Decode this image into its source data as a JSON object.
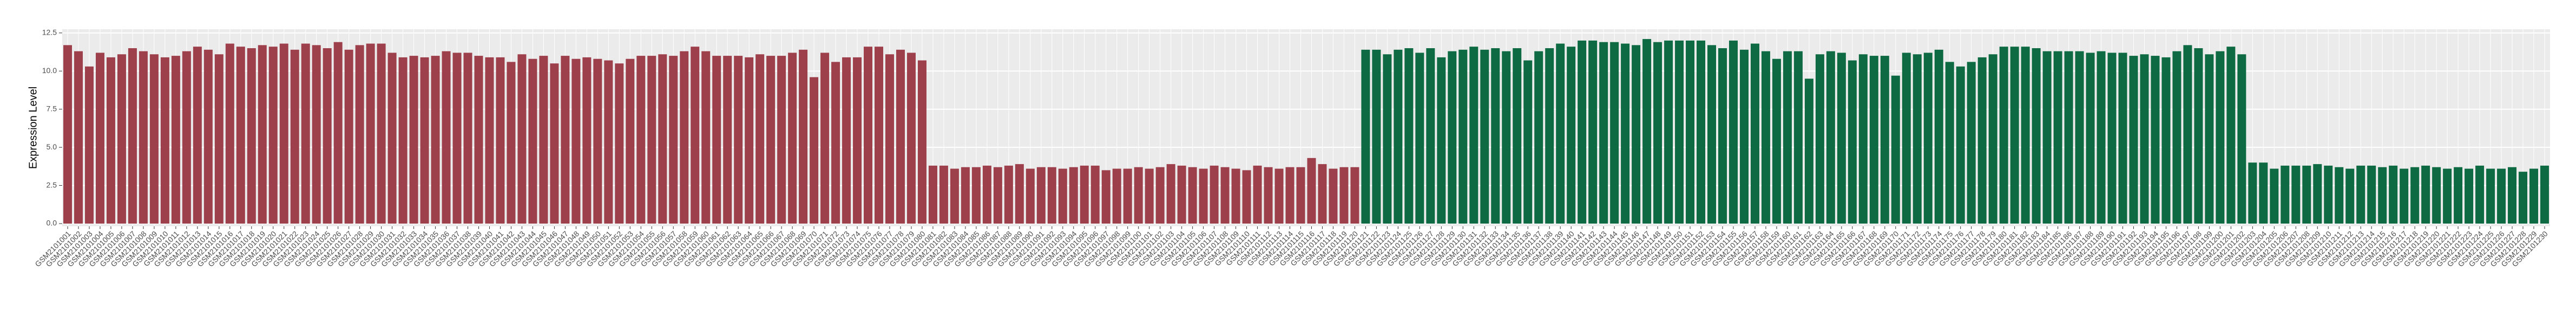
{
  "chart_data": {
    "type": "bar",
    "ylabel": "Expression Level",
    "categories": [
      "GSM2101001",
      "GSM2101002",
      "GSM2101003",
      "GSM2101004",
      "GSM2101005",
      "GSM2101006",
      "GSM2101007",
      "GSM2101008",
      "GSM2101009",
      "GSM2101010",
      "GSM2101011",
      "GSM2101012",
      "GSM2101013",
      "GSM2101014",
      "GSM2101015",
      "GSM2101016",
      "GSM2101017",
      "GSM2101018",
      "GSM2101019",
      "GSM2101020",
      "GSM2101021",
      "GSM2101022",
      "GSM2101023",
      "GSM2101024",
      "GSM2101025",
      "GSM2101026",
      "GSM2101027",
      "GSM2101028",
      "GSM2101029",
      "GSM2101030",
      "GSM2101031",
      "GSM2101032",
      "GSM2101033",
      "GSM2101034",
      "GSM2101035",
      "GSM2101036",
      "GSM2101037",
      "GSM2101038",
      "GSM2101039",
      "GSM2101040",
      "GSM2101041",
      "GSM2101042",
      "GSM2101043",
      "GSM2101044",
      "GSM2101045",
      "GSM2101046",
      "GSM2101047",
      "GSM2101048",
      "GSM2101049",
      "GSM2101050",
      "GSM2101051",
      "GSM2101052",
      "GSM2101053",
      "GSM2101054",
      "GSM2101055",
      "GSM2101056",
      "GSM2101057",
      "GSM2101058",
      "GSM2101059",
      "GSM2101060",
      "GSM2101061",
      "GSM2101062",
      "GSM2101063",
      "GSM2101064",
      "GSM2101065",
      "GSM2101066",
      "GSM2101067",
      "GSM2101068",
      "GSM2101069",
      "GSM2101070",
      "GSM2101071",
      "GSM2101072",
      "GSM2101073",
      "GSM2101074",
      "GSM2101075",
      "GSM2101076",
      "GSM2101077",
      "GSM2101078",
      "GSM2101079",
      "GSM2101080",
      "GSM2101081",
      "GSM2101082",
      "GSM2101083",
      "GSM2101084",
      "GSM2101085",
      "GSM2101086",
      "GSM2101087",
      "GSM2101088",
      "GSM2101089",
      "GSM2101090",
      "GSM2101091",
      "GSM2101092",
      "GSM2101093",
      "GSM2101094",
      "GSM2101095",
      "GSM2101096",
      "GSM2101097",
      "GSM2101098",
      "GSM2101099",
      "GSM2101100",
      "GSM2101101",
      "GSM2101102",
      "GSM2101103",
      "GSM2101104",
      "GSM2101105",
      "GSM2101106",
      "GSM2101107",
      "GSM2101108",
      "GSM2101109",
      "GSM2101110",
      "GSM2101111",
      "GSM2101112",
      "GSM2101113",
      "GSM2101114",
      "GSM2101115",
      "GSM2101116",
      "GSM2101117",
      "GSM2101118",
      "GSM2101119",
      "GSM2101120",
      "GSM2101121",
      "GSM2101122",
      "GSM2101123",
      "GSM2101124",
      "GSM2101125",
      "GSM2101126",
      "GSM2101127",
      "GSM2101128",
      "GSM2101129",
      "GSM2101130",
      "GSM2101131",
      "GSM2101132",
      "GSM2101133",
      "GSM2101134",
      "GSM2101135",
      "GSM2101136",
      "GSM2101137",
      "GSM2101138",
      "GSM2101139",
      "GSM2101140",
      "GSM2101141",
      "GSM2101142",
      "GSM2101143",
      "GSM2101144",
      "GSM2101145",
      "GSM2101146",
      "GSM2101147",
      "GSM2101148",
      "GSM2101149",
      "GSM2101150",
      "GSM2101151",
      "GSM2101152",
      "GSM2101153",
      "GSM2101154",
      "GSM2101155",
      "GSM2101156",
      "GSM2101157",
      "GSM2101158",
      "GSM2101159",
      "GSM2101160",
      "GSM2101161",
      "GSM2101162",
      "GSM2101163",
      "GSM2101164",
      "GSM2101165",
      "GSM2101166",
      "GSM2101167",
      "GSM2101168",
      "GSM2101169",
      "GSM2101170",
      "GSM2101171",
      "GSM2101172",
      "GSM2101173",
      "GSM2101174",
      "GSM2101175",
      "GSM2101176",
      "GSM2101177",
      "GSM2101178",
      "GSM2101179",
      "GSM2101180",
      "GSM2101181",
      "GSM2101182",
      "GSM2101183",
      "GSM2101184",
      "GSM2101185",
      "GSM2101186",
      "GSM2101187",
      "GSM2101188",
      "GSM2101189",
      "GSM2101190",
      "GSM2101191",
      "GSM2101192",
      "GSM2101193",
      "GSM2101194",
      "GSM2101195",
      "GSM2101196",
      "GSM2101197",
      "GSM2101198",
      "GSM2101199",
      "GSM2101200",
      "GSM2101201",
      "GSM2101202",
      "GSM2101203",
      "GSM2101204",
      "GSM2101205",
      "GSM2101206",
      "GSM2101207",
      "GSM2101208",
      "GSM2101209",
      "GSM2101210",
      "GSM2101211",
      "GSM2101212",
      "GSM2101213",
      "GSM2101214",
      "GSM2101215",
      "GSM2101216",
      "GSM2101217",
      "GSM2101218",
      "GSM2101219",
      "GSM2101220",
      "GSM2101221",
      "GSM2101222",
      "GSM2101223",
      "GSM2101224",
      "GSM2101225",
      "GSM2101226",
      "GSM2101227",
      "GSM2101228",
      "GSM2101229",
      "GSM2101230"
    ],
    "series": [
      {
        "color": "#9e3f4c",
        "values": [
          11.7,
          11.3,
          10.3,
          11.2,
          10.9,
          11.1,
          11.5,
          11.3,
          11.1,
          10.9,
          11.0,
          11.3,
          11.6,
          11.4,
          11.1,
          11.8,
          11.6,
          11.5,
          11.7,
          11.6,
          11.8,
          11.4,
          11.8,
          11.7,
          11.5,
          11.9,
          11.4,
          11.7,
          11.8,
          11.8,
          11.2,
          10.9,
          11.0,
          10.9,
          11.0,
          11.3,
          11.2,
          11.2,
          11.0,
          10.9,
          10.9,
          10.6,
          11.1,
          10.8,
          11.0,
          10.5,
          11.0,
          10.8,
          10.9,
          10.8,
          10.7,
          10.5,
          10.8,
          11.0,
          11.0,
          11.1,
          11.0,
          11.3,
          11.6,
          11.3,
          11.0,
          11.0,
          11.0,
          10.9,
          11.1,
          11.0,
          11.0,
          11.2,
          11.4,
          9.6,
          11.2,
          10.6,
          10.9,
          10.9,
          11.6,
          11.6,
          11.1,
          11.4,
          11.2,
          10.7,
          3.8,
          3.8,
          3.6,
          3.7,
          3.7,
          3.8,
          3.7,
          3.8,
          3.9,
          3.6,
          3.7,
          3.7,
          3.6,
          3.7,
          3.8,
          3.8,
          3.5,
          3.6,
          3.6,
          3.7,
          3.6,
          3.7,
          3.9,
          3.8,
          3.7,
          3.6,
          3.8,
          3.7,
          3.6,
          3.5,
          3.8,
          3.7,
          3.6,
          3.7,
          3.7,
          4.3,
          3.9,
          3.6,
          3.7,
          3.7,
          null,
          null,
          null,
          null,
          null,
          null,
          null,
          null,
          null,
          null,
          null,
          null,
          null,
          null,
          null,
          null,
          null,
          null,
          null,
          null,
          null,
          null,
          null,
          null,
          null,
          null,
          null,
          null,
          null,
          null,
          null,
          null,
          null,
          null,
          null,
          null,
          null,
          null,
          null,
          null,
          null,
          null,
          null,
          null,
          null,
          null,
          null,
          null,
          null,
          null,
          null,
          null,
          null,
          null,
          null,
          null,
          null,
          null,
          null,
          null,
          null,
          null,
          null,
          null,
          null,
          null,
          null,
          null,
          null,
          null,
          null,
          null,
          null,
          null,
          null,
          null,
          null,
          null,
          null,
          null,
          null,
          null,
          null,
          null,
          null,
          null,
          null,
          null,
          null,
          null,
          null,
          null,
          null,
          null,
          null,
          null,
          null,
          null,
          null,
          null,
          null,
          null,
          null,
          null,
          null,
          null,
          null,
          null,
          null,
          null
        ]
      },
      {
        "color": "#0e6a42",
        "values": [
          null,
          null,
          null,
          null,
          null,
          null,
          null,
          null,
          null,
          null,
          null,
          null,
          null,
          null,
          null,
          null,
          null,
          null,
          null,
          null,
          null,
          null,
          null,
          null,
          null,
          null,
          null,
          null,
          null,
          null,
          null,
          null,
          null,
          null,
          null,
          null,
          null,
          null,
          null,
          null,
          null,
          null,
          null,
          null,
          null,
          null,
          null,
          null,
          null,
          null,
          null,
          null,
          null,
          null,
          null,
          null,
          null,
          null,
          null,
          null,
          null,
          null,
          null,
          null,
          null,
          null,
          null,
          null,
          null,
          null,
          null,
          null,
          null,
          null,
          null,
          null,
          null,
          null,
          null,
          null,
          null,
          null,
          null,
          null,
          null,
          null,
          null,
          null,
          null,
          null,
          null,
          null,
          null,
          null,
          null,
          null,
          null,
          null,
          null,
          null,
          null,
          null,
          null,
          null,
          null,
          null,
          null,
          null,
          null,
          null,
          null,
          null,
          null,
          null,
          null,
          null,
          null,
          null,
          null,
          null,
          11.4,
          11.4,
          11.1,
          11.4,
          11.5,
          11.2,
          11.5,
          10.9,
          11.3,
          11.4,
          11.6,
          11.4,
          11.5,
          11.3,
          11.5,
          10.7,
          11.3,
          11.5,
          11.8,
          11.6,
          12.0,
          12.0,
          11.9,
          11.9,
          11.8,
          11.7,
          12.1,
          11.9,
          12.0,
          12.0,
          12.0,
          12.0,
          11.7,
          11.5,
          12.0,
          11.4,
          11.8,
          11.3,
          10.8,
          11.3,
          11.3,
          9.5,
          11.1,
          11.3,
          11.2,
          10.7,
          11.1,
          11.0,
          11.0,
          9.7,
          11.2,
          11.1,
          11.2,
          11.4,
          10.6,
          10.3,
          10.6,
          10.9,
          11.1,
          11.6,
          11.6,
          11.6,
          11.5,
          11.3,
          11.3,
          11.3,
          11.3,
          11.2,
          11.3,
          11.2,
          11.2,
          11.0,
          11.1,
          11.0,
          10.9,
          11.3,
          11.7,
          11.5,
          11.1,
          11.3,
          11.6,
          11.1,
          4.0,
          4.0,
          3.6,
          3.8,
          3.8,
          3.8,
          3.9,
          3.8,
          3.7,
          3.6,
          3.8,
          3.8,
          3.7,
          3.8,
          3.6,
          3.7,
          3.8,
          3.7,
          3.6,
          3.7,
          3.6,
          3.8,
          3.6,
          3.6,
          3.7,
          3.4,
          3.6,
          3.8
        ]
      }
    ],
    "ylim": [
      0,
      12.6
    ],
    "yticks": [
      {
        "value": 0,
        "label": "0.0"
      },
      2.5,
      {
        "value": 5,
        "label": "5.0"
      },
      7.5,
      {
        "value": 10,
        "label": "10.0"
      },
      12.5
    ],
    "grid": true
  }
}
